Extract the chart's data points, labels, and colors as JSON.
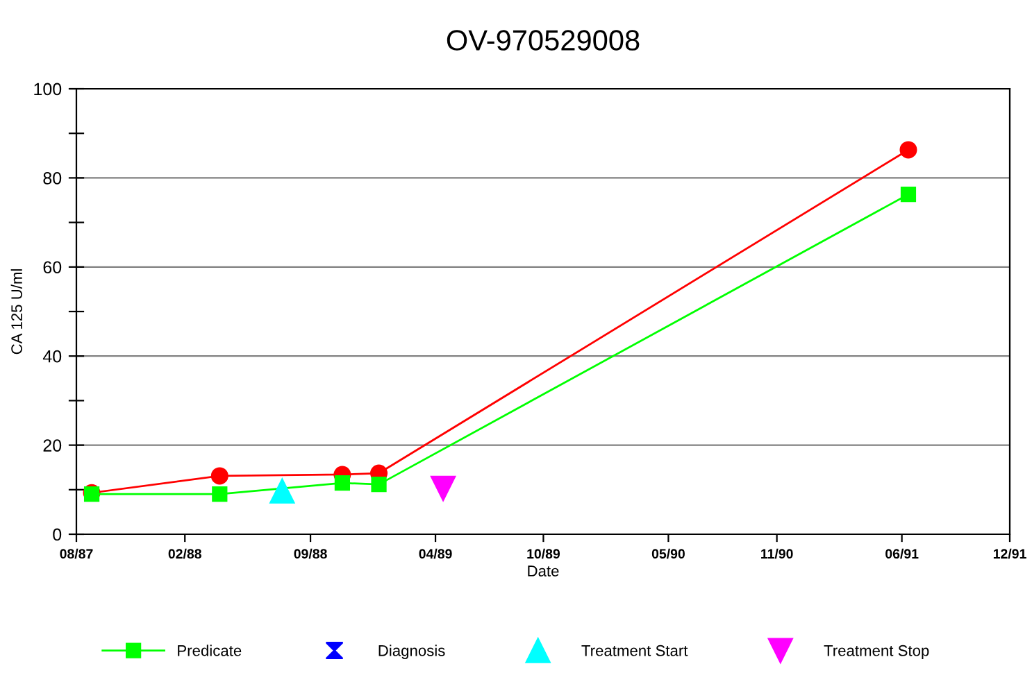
{
  "chart_data": {
    "type": "line",
    "title": "OV-970529008",
    "xlabel": "Date",
    "ylabel": "CA 125 U/ml",
    "series": [
      {
        "name": "Predicate",
        "color": "#00ff00",
        "marker": "square",
        "x": [
          "1987-08-27",
          "1988-03-31",
          "1988-10-25",
          "1988-12-26",
          "1991-06-12"
        ],
        "values": [
          9.0,
          9.0,
          11.5,
          11.2,
          76.3
        ]
      },
      {
        "color": "#ff0000",
        "marker": "circle",
        "x": [
          "1987-08-27",
          "1988-03-31",
          "1988-10-25",
          "1988-12-26",
          "1991-06-12"
        ],
        "values": [
          9.3,
          13.1,
          13.4,
          13.7,
          86.3
        ]
      },
      {
        "name": "Diagnosis",
        "type": "scatter",
        "color": "#0000ff",
        "marker": "hourglass"
      },
      {
        "name": "Treatment Start",
        "type": "scatter",
        "color": "#00ffff",
        "marker": "triangle",
        "x": [
          "1988-07-15"
        ],
        "values": [
          9.7
        ]
      },
      {
        "name": "Treatment Stop",
        "type": "scatter",
        "color": "#ff00ff",
        "marker": "triangle_down",
        "x": [
          "1989-04-14"
        ],
        "values": [
          10.3
        ]
      }
    ],
    "xlim": [
      "1987-08-01",
      "1991-12-01"
    ],
    "xticks": [
      {
        "value": "1987-08-01",
        "label": "08/87"
      },
      {
        "value": "1988-02-01",
        "label": "02/88"
      },
      {
        "value": "1988-09-01",
        "label": "09/88"
      },
      {
        "value": "1989-04-01",
        "label": "04/89"
      },
      {
        "value": "1989-10-01",
        "label": "10/89"
      },
      {
        "value": "1990-05-01",
        "label": "05/90"
      },
      {
        "value": "1990-11-01",
        "label": "11/90"
      },
      {
        "value": "1991-06-01",
        "label": "06/91"
      },
      {
        "value": "1991-12-01",
        "label": "12/91"
      }
    ],
    "ylim": [
      0,
      100
    ],
    "yticks": [
      0,
      {
        "value": 10,
        "label": null
      },
      20,
      {
        "value": 30,
        "label": null
      },
      40,
      {
        "value": 50,
        "label": null
      },
      60,
      {
        "value": 70,
        "label": null
      },
      80,
      {
        "value": 90,
        "label": null
      },
      100
    ],
    "grid": "y",
    "legend": "bottom"
  }
}
